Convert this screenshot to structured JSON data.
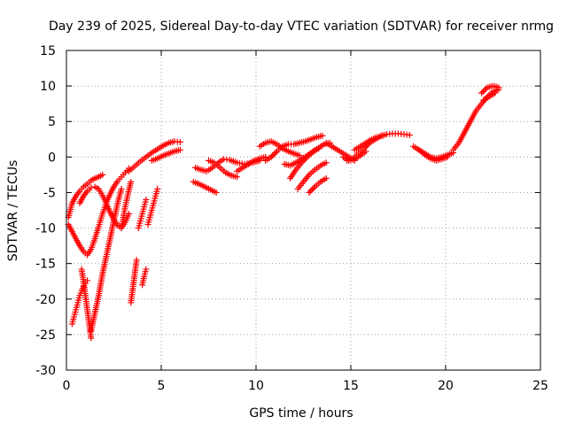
{
  "chart_data": {
    "type": "scatter",
    "title": "Day 239 of 2025, Sidereal Day-to-day VTEC variation (SDTVAR) for receiver nrmg",
    "xlabel": "GPS time / hours",
    "ylabel": "SDTVAR / TECUs",
    "xlim": [
      0,
      25
    ],
    "ylim": [
      -30,
      15
    ],
    "xticks": [
      0,
      5,
      10,
      15,
      20,
      25
    ],
    "yticks": [
      15,
      10,
      5,
      0,
      -5,
      -10,
      -15,
      -20,
      -25,
      -30
    ],
    "grid": true,
    "marker": "+",
    "color": "#ff0000",
    "series": [
      {
        "name": "arc-1",
        "x": [
          0.1,
          0.3,
          0.5,
          0.7,
          0.9,
          1.1,
          1.3,
          1.5,
          1.7,
          1.9
        ],
        "y": [
          -8.5,
          -6.5,
          -5.5,
          -4.8,
          -4.2,
          -3.8,
          -3.3,
          -3.0,
          -2.8,
          -2.5
        ]
      },
      {
        "name": "arc-2",
        "x": [
          0.1,
          0.3,
          0.5,
          0.7,
          0.9,
          1.1,
          1.3,
          1.5,
          1.7,
          1.9,
          2.1,
          2.3,
          2.5,
          2.7,
          2.9,
          3.1,
          3.3
        ],
        "y": [
          -9.5,
          -10.5,
          -11.5,
          -12.5,
          -13.3,
          -13.8,
          -13.0,
          -11.5,
          -9.8,
          -8.0,
          -6.5,
          -5.2,
          -4.2,
          -3.4,
          -2.8,
          -2.2,
          -1.6
        ]
      },
      {
        "name": "arc-3",
        "x": [
          0.7,
          0.9,
          1.1,
          1.3,
          1.5,
          1.7,
          1.9,
          2.1,
          2.3,
          2.5,
          2.7,
          2.9,
          3.1,
          3.3
        ],
        "y": [
          -6.5,
          -5.5,
          -4.8,
          -4.3,
          -4.2,
          -4.5,
          -5.4,
          -6.5,
          -7.8,
          -8.8,
          -9.6,
          -10.0,
          -9.2,
          -8.0
        ]
      },
      {
        "name": "arc-4",
        "x": [
          0.3,
          0.4,
          0.5,
          0.6,
          0.7,
          0.8,
          0.9,
          1.0,
          1.1
        ],
        "y": [
          -23.5,
          -22.5,
          -21.5,
          -20.5,
          -19.5,
          -18.8,
          -18.2,
          -17.8,
          -17.4
        ]
      },
      {
        "name": "arc-5",
        "x": [
          0.8,
          0.9,
          1.0,
          1.1,
          1.2,
          1.3
        ],
        "y": [
          -15.8,
          -17.5,
          -19.5,
          -21.5,
          -23.5,
          -25.5
        ]
      },
      {
        "name": "arc-6",
        "x": [
          1.3,
          1.5,
          1.7,
          1.9,
          2.1,
          2.3,
          2.5,
          2.7,
          2.9
        ],
        "y": [
          -24.5,
          -22.0,
          -19.5,
          -16.5,
          -14.0,
          -11.5,
          -9.0,
          -6.5,
          -4.5
        ]
      },
      {
        "name": "arc-7",
        "x": [
          2.9,
          3.0,
          3.1,
          3.2,
          3.3,
          3.4
        ],
        "y": [
          -10.0,
          -8.5,
          -7.0,
          -5.8,
          -4.6,
          -3.5
        ]
      },
      {
        "name": "arc-8",
        "x": [
          3.4,
          3.5,
          3.6,
          3.7
        ],
        "y": [
          -20.5,
          -18.5,
          -16.5,
          -14.5
        ]
      },
      {
        "name": "arc-9",
        "x": [
          3.8,
          3.9,
          4.0,
          4.1,
          4.2
        ],
        "y": [
          -10.0,
          -9.0,
          -8.0,
          -7.0,
          -6.0
        ]
      },
      {
        "name": "arc-10",
        "x": [
          4.0,
          4.1,
          4.2
        ],
        "y": [
          -18.0,
          -16.8,
          -15.8
        ]
      },
      {
        "name": "arc-11",
        "x": [
          4.3,
          4.4,
          4.5,
          4.6,
          4.7,
          4.8
        ],
        "y": [
          -9.5,
          -8.5,
          -7.5,
          -6.5,
          -5.5,
          -4.5
        ]
      },
      {
        "name": "arc-12",
        "x": [
          3.3,
          3.6,
          3.9,
          4.2,
          4.5,
          4.8,
          5.1,
          5.4,
          5.7,
          6.0
        ],
        "y": [
          -2.0,
          -1.3,
          -0.6,
          0.0,
          0.6,
          1.1,
          1.6,
          2.0,
          2.2,
          2.1
        ]
      },
      {
        "name": "arc-13",
        "x": [
          4.5,
          4.8,
          5.1,
          5.4,
          5.7,
          6.0
        ],
        "y": [
          -0.5,
          -0.2,
          0.2,
          0.5,
          0.8,
          1.0
        ]
      },
      {
        "name": "arc-14",
        "x": [
          6.7,
          7.0,
          7.3,
          7.6,
          7.9
        ],
        "y": [
          -3.5,
          -3.8,
          -4.2,
          -4.6,
          -5.0
        ]
      },
      {
        "name": "arc-15",
        "x": [
          6.8,
          7.1,
          7.4,
          7.7,
          8.0,
          8.3,
          8.6,
          9.0,
          9.4,
          9.8,
          10.2
        ],
        "y": [
          -1.5,
          -1.8,
          -2.0,
          -1.5,
          -0.8,
          -0.3,
          -0.4,
          -0.8,
          -1.0,
          -0.8,
          -0.5
        ]
      },
      {
        "name": "arc-16",
        "x": [
          7.5,
          7.8,
          8.1,
          8.4,
          8.7,
          9.0
        ],
        "y": [
          -0.5,
          -0.8,
          -1.5,
          -2.2,
          -2.6,
          -2.8
        ]
      },
      {
        "name": "arc-17",
        "x": [
          9.0,
          9.3,
          9.6,
          9.9,
          10.2,
          10.5
        ],
        "y": [
          -2.0,
          -1.5,
          -1.0,
          -0.5,
          -0.2,
          0.0
        ]
      },
      {
        "name": "arc-18",
        "x": [
          10.5,
          10.8,
          11.1,
          11.4,
          11.7,
          12.0,
          12.3,
          12.6,
          12.9,
          13.2,
          13.5
        ],
        "y": [
          -0.5,
          0.0,
          0.8,
          1.5,
          1.8,
          1.8,
          2.0,
          2.2,
          2.5,
          2.8,
          3.0
        ]
      },
      {
        "name": "arc-19",
        "x": [
          10.2,
          10.5,
          10.8,
          11.1,
          11.4,
          11.7,
          12.0,
          12.3
        ],
        "y": [
          1.5,
          2.0,
          2.2,
          1.8,
          1.2,
          0.8,
          0.5,
          0.2
        ]
      },
      {
        "name": "arc-20",
        "x": [
          11.5,
          11.8,
          12.1,
          12.4,
          12.7,
          13.0,
          13.3,
          13.6,
          13.9
        ],
        "y": [
          -1.0,
          -1.2,
          -0.8,
          -0.3,
          0.2,
          0.8,
          1.3,
          1.8,
          2.0
        ]
      },
      {
        "name": "arc-21",
        "x": [
          11.8,
          12.1,
          12.4,
          12.7,
          13.0,
          13.3
        ],
        "y": [
          -3.0,
          -1.8,
          -0.8,
          0.0,
          0.7,
          1.2
        ]
      },
      {
        "name": "arc-22",
        "x": [
          12.2,
          12.5,
          12.8,
          13.1,
          13.4,
          13.7
        ],
        "y": [
          -4.5,
          -3.5,
          -2.5,
          -1.8,
          -1.2,
          -0.8
        ]
      },
      {
        "name": "arc-23",
        "x": [
          12.8,
          13.1,
          13.4,
          13.7
        ],
        "y": [
          -5.0,
          -4.2,
          -3.5,
          -3.0
        ]
      },
      {
        "name": "arc-24",
        "x": [
          13.7,
          14.0,
          14.3,
          14.6,
          14.9,
          15.2
        ],
        "y": [
          2.0,
          1.5,
          1.0,
          0.5,
          0.0,
          -0.5
        ]
      },
      {
        "name": "arc-25",
        "x": [
          14.6,
          14.9,
          15.2,
          15.5,
          15.8
        ],
        "y": [
          0.0,
          -0.5,
          -0.3,
          0.2,
          0.8
        ]
      },
      {
        "name": "arc-26",
        "x": [
          14.8,
          15.1,
          15.4,
          15.7,
          16.0,
          16.3,
          16.6,
          16.9,
          17.2,
          17.5,
          17.8,
          18.1
        ],
        "y": [
          -0.5,
          -0.2,
          0.5,
          1.2,
          2.0,
          2.5,
          3.0,
          3.2,
          3.3,
          3.3,
          3.2,
          3.1
        ]
      },
      {
        "name": "arc-27",
        "x": [
          15.2,
          15.5,
          15.8,
          16.1,
          16.4,
          16.7
        ],
        "y": [
          1.0,
          1.5,
          2.0,
          2.5,
          2.8,
          3.0
        ]
      },
      {
        "name": "arc-28",
        "x": [
          18.3,
          18.6,
          18.9,
          19.2,
          19.5,
          19.8,
          20.1,
          20.4
        ],
        "y": [
          1.5,
          1.0,
          0.5,
          0.0,
          -0.2,
          0.0,
          0.3,
          0.6
        ]
      },
      {
        "name": "arc-29",
        "x": [
          18.6,
          18.9,
          19.2,
          19.5,
          19.8,
          20.1
        ],
        "y": [
          1.0,
          0.3,
          -0.2,
          -0.5,
          -0.3,
          0.0
        ]
      },
      {
        "name": "arc-30",
        "x": [
          20.4,
          20.7,
          21.0,
          21.3,
          21.6,
          21.9,
          22.2,
          22.5,
          22.8
        ],
        "y": [
          1.0,
          2.0,
          3.5,
          5.0,
          6.5,
          7.5,
          8.5,
          9.2,
          9.5
        ]
      },
      {
        "name": "arc-31",
        "x": [
          21.9,
          22.2,
          22.5,
          22.8
        ],
        "y": [
          9.0,
          9.8,
          10.0,
          9.8
        ]
      },
      {
        "name": "arc-32",
        "x": [
          22.0,
          22.3,
          22.6
        ],
        "y": [
          8.0,
          8.5,
          9.0
        ]
      }
    ]
  }
}
